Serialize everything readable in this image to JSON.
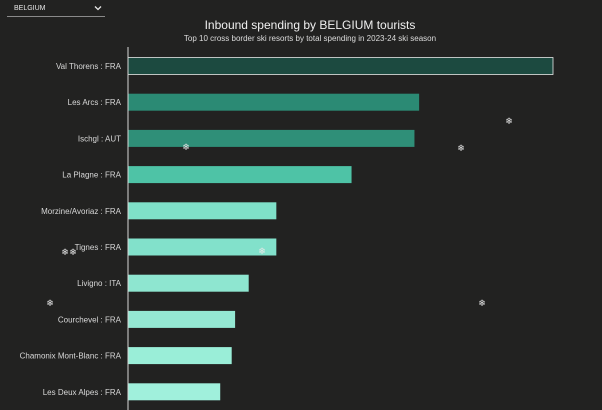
{
  "selector": {
    "selected": "BELGIUM",
    "icon": "chevron-down-icon"
  },
  "chart_data": {
    "type": "bar",
    "orientation": "horizontal",
    "title": "Inbound spending by BELGIUM tourists",
    "subtitle": "Top 10 cross border ski resorts by total spending in 2023-24 ski season",
    "xlabel": "",
    "ylabel": "",
    "grid": false,
    "xlim": [
      0,
      100
    ],
    "categories": [
      "Val Thorens : FRA",
      "Les Arcs : FRA",
      "Ischgl : AUT",
      "La Plagne : FRA",
      "Morzine/Avoriaz : FRA",
      "Tignes : FRA",
      "Livigno : ITA",
      "Courchevel : FRA",
      "Chamonix Mont-Blanc : FRA",
      "Les Deux Alpes : FRA"
    ],
    "values": [
      100,
      68.5,
      67.4,
      52.6,
      34.9,
      34.9,
      28.4,
      25.2,
      24.4,
      21.7
    ],
    "colors": [
      "#1c4a40",
      "#2b8a74",
      "#2f8f78",
      "#4ec3a6",
      "#7fe0c9",
      "#82e1cb",
      "#8ee6d0",
      "#94e8d3",
      "#9aeed8",
      "#a0f0dc"
    ]
  },
  "decoration": {
    "snowflake_glyph": "❄"
  }
}
